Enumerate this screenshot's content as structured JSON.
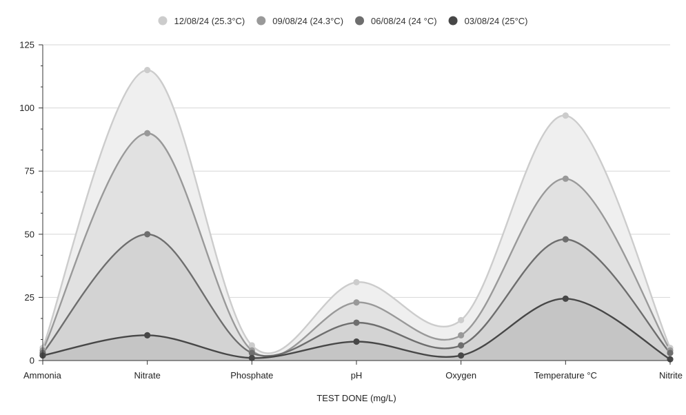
{
  "chart_data": {
    "type": "area",
    "title": "",
    "xlabel": "TEST DONE (mg/L)",
    "ylabel": "",
    "ylim": [
      0,
      125
    ],
    "yticks": [
      "0",
      "25",
      "50",
      "75",
      "100",
      "125"
    ],
    "categories": [
      "Ammonia",
      "Nitrate",
      "Phosphate",
      "pH",
      "Oxygen",
      "Temperature °C",
      "Nitrite"
    ],
    "legend_position": "top",
    "series": [
      {
        "name": "12/08/24 (25.3°C)",
        "color": "#cccccc",
        "fill": "#efefef",
        "values": [
          5,
          115,
          6,
          31,
          16,
          97,
          5
        ]
      },
      {
        "name": "09/08/24 (24.3°C)",
        "color": "#999999",
        "fill": "#e1e1e1",
        "values": [
          4,
          90,
          4,
          23,
          10,
          72,
          4
        ]
      },
      {
        "name": "06/08/24 (24 °C)",
        "color": "#6e6e6e",
        "fill": "#d3d3d3",
        "values": [
          3,
          50,
          3,
          15,
          6,
          48,
          3
        ]
      },
      {
        "name": "03/08/24 (25°C)",
        "color": "#474747",
        "fill": "#c5c5c5",
        "values": [
          2,
          10,
          1,
          7.5,
          2,
          24.5,
          0.5
        ]
      }
    ]
  }
}
